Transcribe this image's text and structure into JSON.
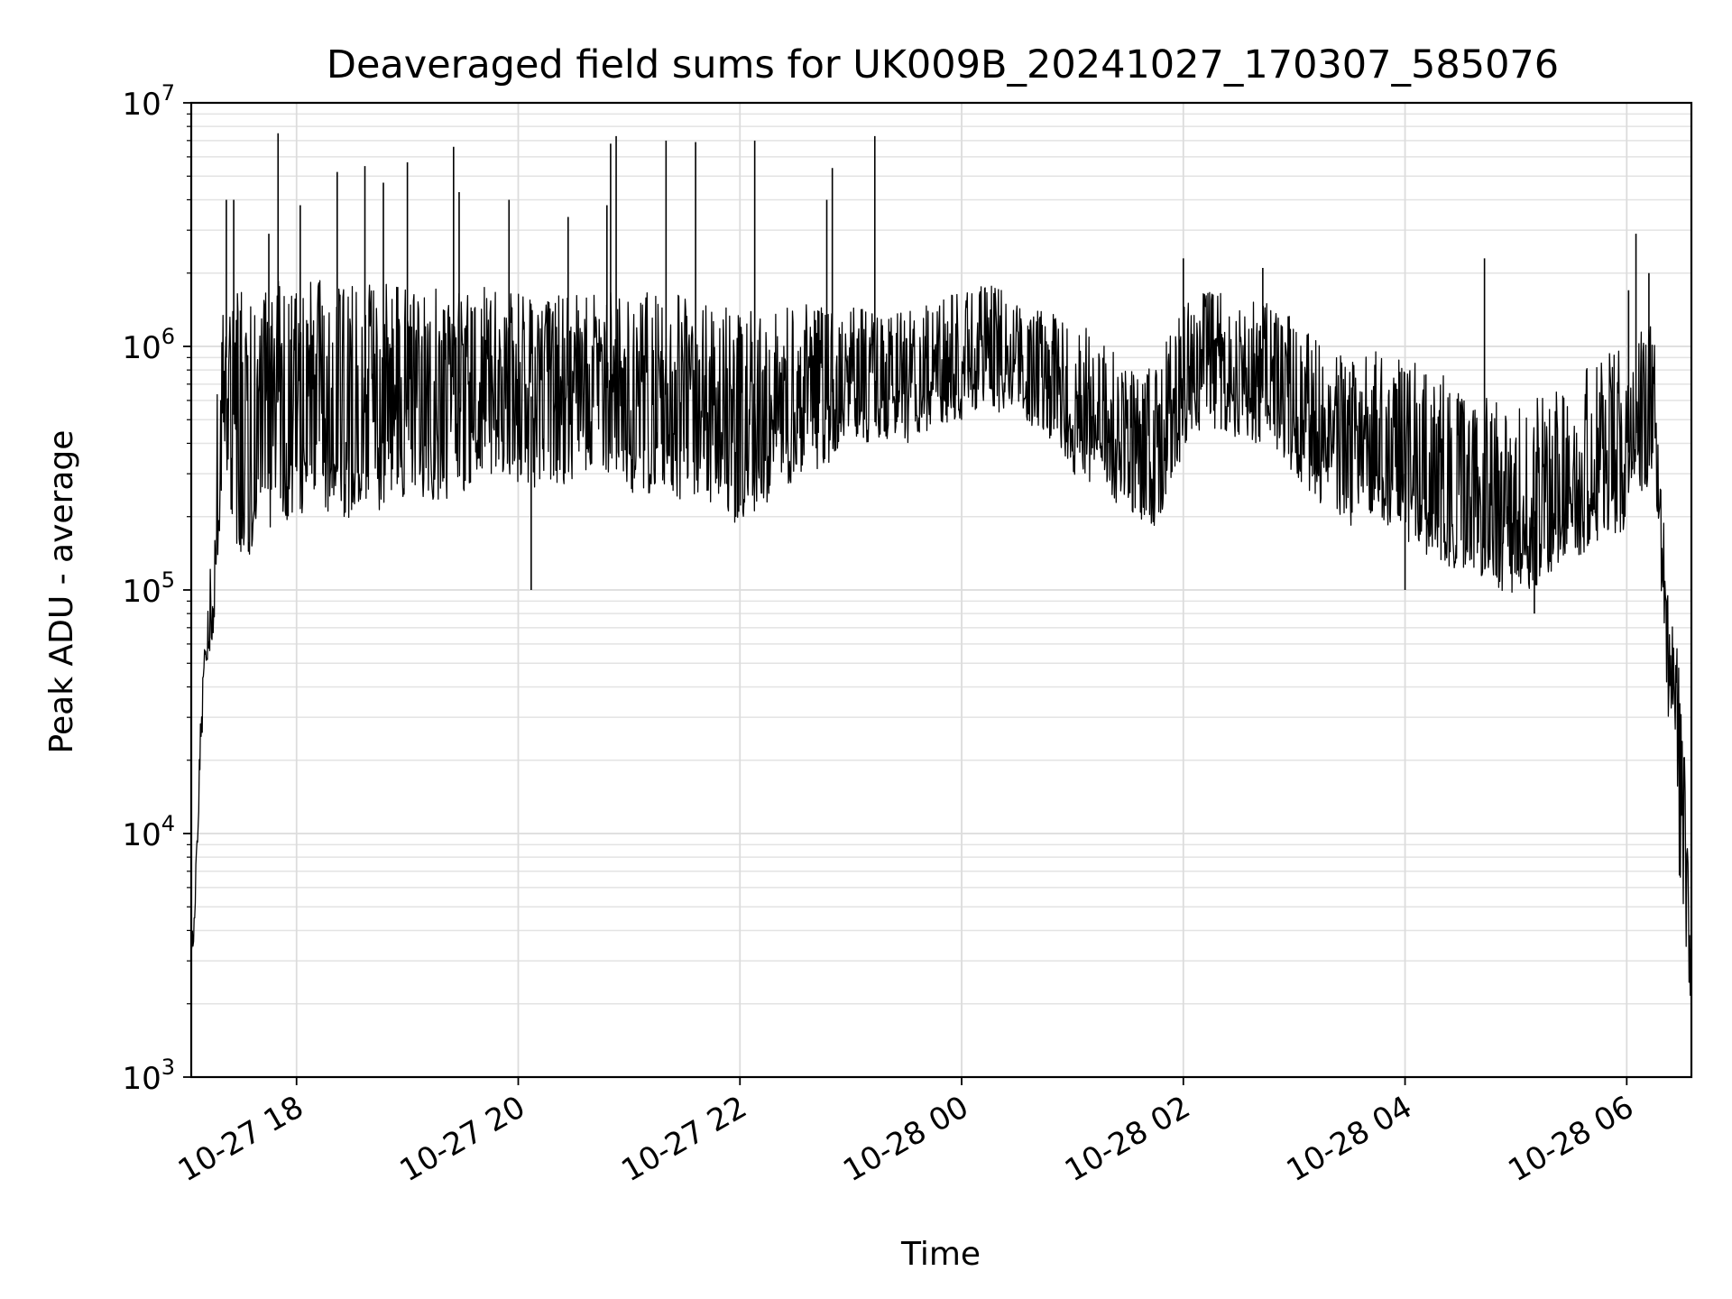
{
  "chart_data": {
    "type": "line",
    "title": "Deaveraged field sums for UK009B_20241027_170307_585076",
    "xlabel": "Time",
    "ylabel": "Peak ADU - average",
    "yscale": "log",
    "ylim": [
      1000,
      10000000
    ],
    "xlim": [
      "2024-10-27T17:03",
      "2024-10-28T06:35"
    ],
    "grid": true,
    "legend": "none",
    "line_color": "#000000",
    "x_ticks": [
      "10-27 18",
      "10-27 20",
      "10-27 22",
      "10-28 00",
      "10-28 02",
      "10-28 04",
      "10-28 06"
    ],
    "x_tick_times": [
      "2024-10-27T18:00",
      "2024-10-27T20:00",
      "2024-10-27T22:00",
      "2024-10-28T00:00",
      "2024-10-28T02:00",
      "2024-10-28T04:00",
      "2024-10-28T06:00"
    ],
    "y_ticks": [
      {
        "base": "10",
        "exp": "3",
        "value": 1000
      },
      {
        "base": "10",
        "exp": "4",
        "value": 10000
      },
      {
        "base": "10",
        "exp": "5",
        "value": 100000
      },
      {
        "base": "10",
        "exp": "6",
        "value": 1000000
      },
      {
        "base": "10",
        "exp": "7",
        "value": 10000000
      }
    ],
    "series": [
      {
        "x": [
          "2024-10-27T17:03",
          "2024-10-27T17:05",
          "2024-10-27T17:08",
          "2024-10-27T17:12",
          "2024-10-27T17:15",
          "2024-10-27T17:18",
          "2024-10-27T17:22",
          "2024-10-27T17:25",
          "2024-10-27T17:28",
          "2024-10-27T17:32",
          "2024-10-27T17:36",
          "2024-10-27T17:40",
          "2024-10-27T17:45",
          "2024-10-27T17:50",
          "2024-10-27T17:55",
          "2024-10-27T18:00",
          "2024-10-27T18:10",
          "2024-10-27T18:20",
          "2024-10-27T18:30",
          "2024-10-27T18:40",
          "2024-10-27T18:50",
          "2024-10-27T19:00",
          "2024-10-27T19:15",
          "2024-10-27T19:30",
          "2024-10-27T19:45",
          "2024-10-27T20:00",
          "2024-10-27T20:15",
          "2024-10-27T20:30",
          "2024-10-27T20:45",
          "2024-10-27T21:00",
          "2024-10-27T21:15",
          "2024-10-27T21:30",
          "2024-10-27T21:45",
          "2024-10-27T22:00",
          "2024-10-27T22:15",
          "2024-10-27T22:30",
          "2024-10-27T22:45",
          "2024-10-27T23:00",
          "2024-10-27T23:15",
          "2024-10-27T23:30",
          "2024-10-27T23:45",
          "2024-10-28T00:00",
          "2024-10-28T00:15",
          "2024-10-28T00:30",
          "2024-10-28T00:45",
          "2024-10-28T01:00",
          "2024-10-28T01:15",
          "2024-10-28T01:30",
          "2024-10-28T01:45",
          "2024-10-28T02:00",
          "2024-10-28T02:15",
          "2024-10-28T02:30",
          "2024-10-28T02:45",
          "2024-10-28T03:00",
          "2024-10-28T03:15",
          "2024-10-28T03:30",
          "2024-10-28T03:45",
          "2024-10-28T04:00",
          "2024-10-28T04:15",
          "2024-10-28T04:30",
          "2024-10-28T04:45",
          "2024-10-28T05:00",
          "2024-10-28T05:15",
          "2024-10-28T05:30",
          "2024-10-28T05:45",
          "2024-10-28T06:00",
          "2024-10-28T06:15",
          "2024-10-28T06:22",
          "2024-10-28T06:26",
          "2024-10-28T06:30",
          "2024-10-28T06:35"
        ],
        "y": [
          2900,
          4200,
          25000,
          60000,
          90000,
          300000,
          900000,
          600000,
          400000,
          250000,
          200000,
          500000,
          300000,
          600000,
          350000,
          400000,
          500000,
          450000,
          500000,
          550000,
          500000,
          550000,
          600000,
          650000,
          700000,
          600000,
          650000,
          700000,
          750000,
          700000,
          650000,
          600000,
          550000,
          500000,
          550000,
          600000,
          650000,
          650000,
          700000,
          700000,
          750000,
          800000,
          900000,
          850000,
          800000,
          550000,
          450000,
          350000,
          300000,
          600000,
          800000,
          700000,
          650000,
          500000,
          400000,
          350000,
          400000,
          300000,
          250000,
          200000,
          200000,
          150000,
          200000,
          250000,
          300000,
          350000,
          700000,
          50000,
          40000,
          20000,
          2100
        ],
        "envelope": {
          "lower": [
            2900,
            4000,
            20000,
            50000,
            60000,
            150000,
            300000,
            200000,
            150000,
            120000,
            150000,
            250000,
            150000,
            250000,
            180000,
            200000,
            200000,
            180000,
            200000,
            220000,
            200000,
            250000,
            220000,
            250000,
            300000,
            250000,
            260000,
            280000,
            300000,
            250000,
            250000,
            230000,
            200000,
            180000,
            230000,
            280000,
            320000,
            380000,
            420000,
            400000,
            450000,
            500000,
            550000,
            500000,
            450000,
            300000,
            250000,
            200000,
            180000,
            350000,
            450000,
            420000,
            380000,
            300000,
            220000,
            180000,
            200000,
            160000,
            130000,
            120000,
            110000,
            90000,
            110000,
            130000,
            150000,
            180000,
            300000,
            30000,
            30000,
            2500,
            1500
          ],
          "upper": [
            3500,
            6000,
            30000,
            100000,
            200000,
            1200000,
            1500000,
            1400000,
            1800000,
            2000000,
            1600000,
            1800000,
            1700000,
            1900000,
            1800000,
            1800000,
            1900000,
            1800000,
            1900000,
            1800000,
            1800000,
            1700000,
            1800000,
            1700000,
            1800000,
            1700000,
            1600000,
            1700000,
            1700000,
            1600000,
            1700000,
            1600000,
            1500000,
            1400000,
            1400000,
            1500000,
            1500000,
            1500000,
            1400000,
            1400000,
            1500000,
            1700000,
            1800000,
            1600000,
            1400000,
            1300000,
            1100000,
            900000,
            800000,
            1600000,
            1700000,
            1600000,
            1500000,
            1300000,
            1000000,
            900000,
            1000000,
            900000,
            800000,
            700000,
            650000,
            550000,
            700000,
            800000,
            900000,
            1000000,
            1300000,
            100000,
            70000,
            40000,
            3000
          ]
        },
        "spikes": [
          {
            "t": "2024-10-27T17:22",
            "y": 4000000
          },
          {
            "t": "2024-10-27T17:26",
            "y": 4000000
          },
          {
            "t": "2024-10-27T17:45",
            "y": 2900000
          },
          {
            "t": "2024-10-27T17:50",
            "y": 7500000
          },
          {
            "t": "2024-10-27T18:02",
            "y": 3800000
          },
          {
            "t": "2024-10-27T18:22",
            "y": 5200000
          },
          {
            "t": "2024-10-27T18:37",
            "y": 5500000
          },
          {
            "t": "2024-10-27T18:47",
            "y": 4700000
          },
          {
            "t": "2024-10-27T19:00",
            "y": 5700000
          },
          {
            "t": "2024-10-27T19:25",
            "y": 6600000
          },
          {
            "t": "2024-10-27T19:28",
            "y": 4300000
          },
          {
            "t": "2024-10-27T19:55",
            "y": 4000000
          },
          {
            "t": "2024-10-27T20:07",
            "y": 100000
          },
          {
            "t": "2024-10-27T20:27",
            "y": 3400000
          },
          {
            "t": "2024-10-27T20:48",
            "y": 3800000
          },
          {
            "t": "2024-10-27T20:50",
            "y": 6800000
          },
          {
            "t": "2024-10-27T20:53",
            "y": 7300000
          },
          {
            "t": "2024-10-27T21:20",
            "y": 7000000
          },
          {
            "t": "2024-10-27T21:36",
            "y": 6900000
          },
          {
            "t": "2024-10-27T22:08",
            "y": 7000000
          },
          {
            "t": "2024-10-27T22:47",
            "y": 4000000
          },
          {
            "t": "2024-10-27T22:50",
            "y": 5400000
          },
          {
            "t": "2024-10-27T23:13",
            "y": 7300000
          },
          {
            "t": "2024-10-28T02:00",
            "y": 2300000
          },
          {
            "t": "2024-10-28T02:43",
            "y": 2100000
          },
          {
            "t": "2024-10-28T04:00",
            "y": 100000
          },
          {
            "t": "2024-10-28T04:43",
            "y": 2300000
          },
          {
            "t": "2024-10-28T05:10",
            "y": 80000
          },
          {
            "t": "2024-10-28T06:01",
            "y": 1700000
          },
          {
            "t": "2024-10-28T06:05",
            "y": 2900000
          },
          {
            "t": "2024-10-28T06:12",
            "y": 2000000
          }
        ]
      }
    ]
  }
}
